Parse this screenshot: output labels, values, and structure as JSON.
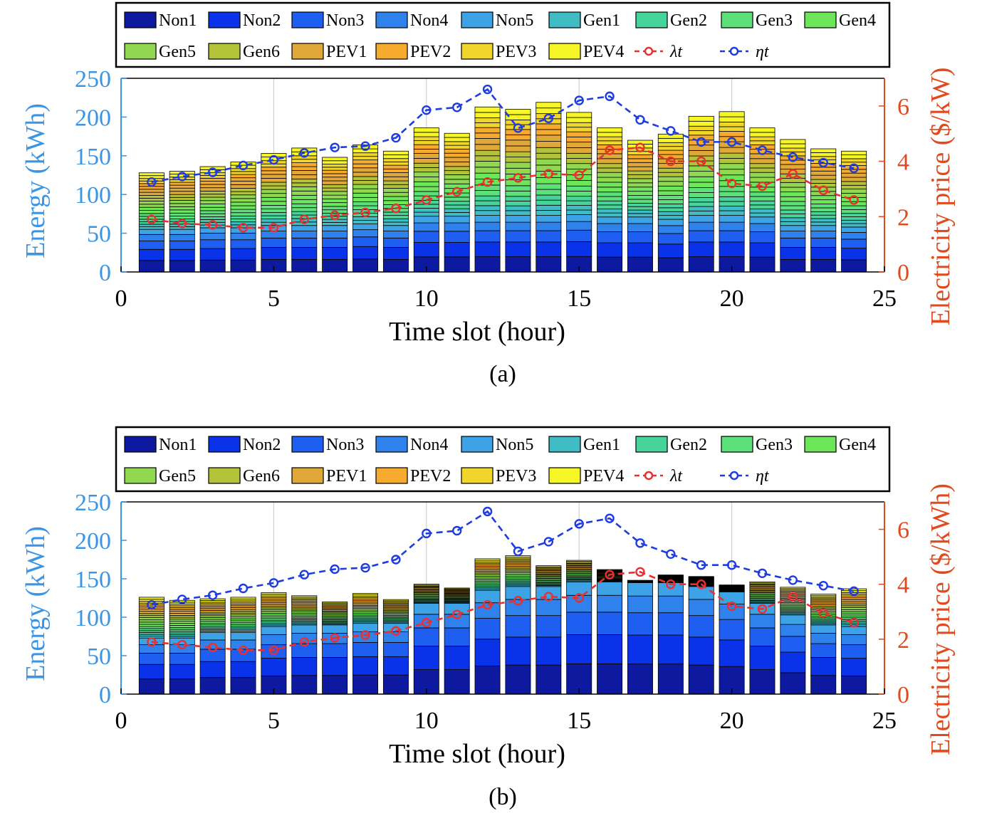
{
  "chart_data": [
    {
      "type": "bar",
      "panel_label": "(a)",
      "xlabel": "Time slot (hour)",
      "ylabel": "Energy (kWh)",
      "ylabel_right": "Electricity price ($/kW)",
      "xlim": [
        0,
        25
      ],
      "ylim": [
        0,
        250
      ],
      "ylim_right": [
        0,
        7
      ],
      "xticks": [
        0,
        5,
        10,
        15,
        20,
        25
      ],
      "yticks": [
        0,
        50,
        100,
        150,
        200,
        250
      ],
      "yticks_right": [
        0,
        2,
        4,
        6
      ],
      "grid": "x-major",
      "legend_placement": "top",
      "x": [
        1,
        2,
        3,
        4,
        5,
        6,
        7,
        8,
        9,
        10,
        11,
        12,
        13,
        14,
        15,
        16,
        17,
        18,
        19,
        20,
        21,
        22,
        23,
        24
      ],
      "stack_series": [
        "Non1",
        "Non2",
        "Non3",
        "Non4",
        "Non5",
        "Gen1",
        "Gen2",
        "Gen3",
        "Gen4",
        "Gen5",
        "Gen6",
        "PEV1",
        "PEV2",
        "PEV3",
        "PEV4"
      ],
      "nonshiftable_totals": [
        55,
        55,
        57,
        57,
        60,
        60,
        60,
        62,
        60,
        72,
        72,
        73,
        73,
        73,
        74,
        71,
        71,
        68,
        73,
        73,
        71,
        60,
        60,
        58
      ],
      "totals": [
        128,
        130,
        136,
        142,
        153,
        160,
        148,
        164,
        156,
        186,
        179,
        213,
        210,
        219,
        206,
        186,
        170,
        178,
        201,
        207,
        186,
        171,
        159,
        156
      ],
      "line_series": [
        {
          "name": "λt",
          "values": [
            1.9,
            1.75,
            1.7,
            1.6,
            1.6,
            1.9,
            2.05,
            2.15,
            2.3,
            2.6,
            2.9,
            3.25,
            3.4,
            3.55,
            3.5,
            4.4,
            4.5,
            4.0,
            4.0,
            3.2,
            3.1,
            3.55,
            2.95,
            2.6
          ]
        },
        {
          "name": "ηt",
          "values": [
            3.25,
            3.45,
            3.6,
            3.85,
            4.05,
            4.3,
            4.5,
            4.55,
            4.85,
            5.85,
            5.95,
            6.6,
            5.2,
            5.55,
            6.2,
            6.35,
            5.5,
            5.1,
            4.7,
            4.7,
            4.4,
            4.15,
            3.95,
            3.75
          ]
        }
      ]
    },
    {
      "type": "bar",
      "panel_label": "(b)",
      "xlabel": "Time slot (hour)",
      "ylabel": "Energy (kWh)",
      "ylabel_right": "Electricity price ($/kWh)",
      "xlim": [
        0,
        25
      ],
      "ylim": [
        0,
        250
      ],
      "ylim_right": [
        0,
        7
      ],
      "xticks": [
        0,
        5,
        10,
        15,
        20,
        25
      ],
      "yticks": [
        0,
        50,
        100,
        150,
        200,
        250
      ],
      "yticks_right": [
        0,
        2,
        4,
        6
      ],
      "grid": "x-major",
      "legend_placement": "top",
      "x": [
        1,
        2,
        3,
        4,
        5,
        6,
        7,
        8,
        9,
        10,
        11,
        12,
        13,
        14,
        15,
        16,
        17,
        18,
        19,
        20,
        21,
        22,
        23,
        24
      ],
      "stack_series": [
        "Non1",
        "Non2",
        "Non3",
        "Non4",
        "Non5",
        "Gen1",
        "Gen2",
        "Gen3",
        "Gen4",
        "Gen5",
        "Gen6",
        "PEV1",
        "PEV2",
        "PEV3",
        "PEV4"
      ],
      "nonshiftable_totals": [
        73,
        73,
        80,
        80,
        88,
        90,
        90,
        92,
        92,
        118,
        118,
        135,
        140,
        140,
        146,
        146,
        145,
        145,
        140,
        133,
        118,
        103,
        90,
        88
      ],
      "totals": [
        126,
        122,
        124,
        126,
        132,
        128,
        120,
        131,
        123,
        143,
        138,
        176,
        180,
        167,
        174,
        162,
        148,
        155,
        153,
        142,
        146,
        139,
        130,
        137
      ],
      "line_series": [
        {
          "name": "λt",
          "values": [
            1.9,
            1.8,
            1.7,
            1.6,
            1.6,
            1.9,
            2.05,
            2.15,
            2.3,
            2.6,
            2.9,
            3.25,
            3.4,
            3.55,
            3.5,
            4.35,
            4.45,
            4.0,
            4.0,
            3.2,
            3.1,
            3.55,
            2.95,
            2.6
          ]
        },
        {
          "name": "ηt",
          "values": [
            3.25,
            3.45,
            3.6,
            3.85,
            4.05,
            4.35,
            4.55,
            4.6,
            4.9,
            5.85,
            5.95,
            6.65,
            5.2,
            5.55,
            6.2,
            6.4,
            5.5,
            5.1,
            4.7,
            4.7,
            4.4,
            4.15,
            3.95,
            3.75
          ]
        }
      ]
    }
  ],
  "legend": [
    {
      "label": "Non1",
      "color": "#0d1aa0",
      "type": "patch"
    },
    {
      "label": "Non2",
      "color": "#0a32e8",
      "type": "patch"
    },
    {
      "label": "Non3",
      "color": "#1e5ef0",
      "type": "patch"
    },
    {
      "label": "Non4",
      "color": "#2f82ec",
      "type": "patch"
    },
    {
      "label": "Non5",
      "color": "#3ea2e6",
      "type": "patch"
    },
    {
      "label": "Gen1",
      "color": "#3fbcc4",
      "type": "patch"
    },
    {
      "label": "Gen2",
      "color": "#46d49a",
      "type": "patch"
    },
    {
      "label": "Gen3",
      "color": "#5de07a",
      "type": "patch"
    },
    {
      "label": "Gen4",
      "color": "#6ee65a",
      "type": "patch"
    },
    {
      "label": "Gen5",
      "color": "#90d850",
      "type": "patch"
    },
    {
      "label": "Gen6",
      "color": "#b4c23a",
      "type": "patch"
    },
    {
      "label": "PEV1",
      "color": "#e0a838",
      "type": "patch"
    },
    {
      "label": "PEV2",
      "color": "#f6ab2e",
      "type": "patch"
    },
    {
      "label": "PEV3",
      "color": "#f0d62a",
      "type": "patch"
    },
    {
      "label": "PEV4",
      "color": "#f6f626",
      "type": "patch"
    },
    {
      "label": "λt",
      "color": "#e83030",
      "type": "line"
    },
    {
      "label": "ηt",
      "color": "#1e3ce0",
      "type": "line"
    }
  ],
  "colors": {
    "left_axis": "#3a95e6",
    "right_axis": "#e04a1e",
    "lambda_line": "#e83030",
    "eta_line": "#1e3ce0"
  }
}
